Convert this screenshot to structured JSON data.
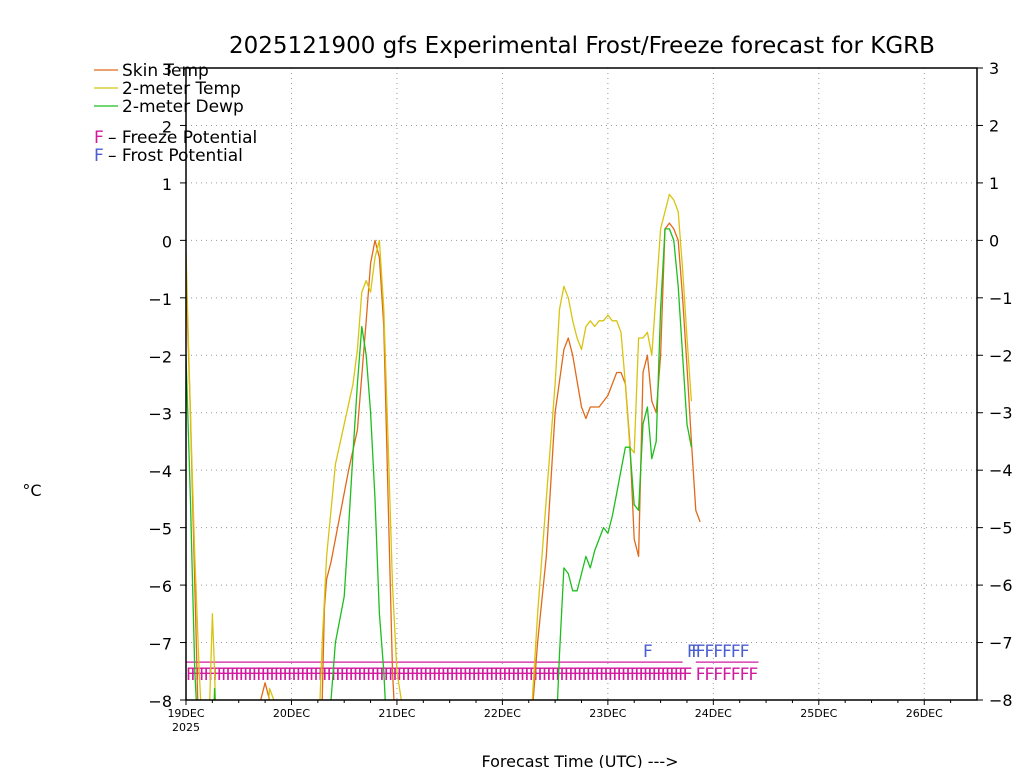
{
  "chart_data": {
    "type": "line",
    "title": "2025121900 gfs Experimental Frost/Freeze forecast for KGRB",
    "xlabel": "Forecast Time (UTC) --->",
    "ylabel": "°C",
    "ylim": [
      -8,
      3
    ],
    "xlim_hours": [
      0,
      180
    ],
    "y_ticks": [
      3,
      2,
      1,
      0,
      -1,
      -2,
      -3,
      -4,
      -5,
      -6,
      -7,
      -8
    ],
    "y_tick_labels": [
      "3",
      "2",
      "1",
      "0",
      "−1",
      "−2",
      "−3",
      "−4",
      "−5",
      "−6",
      "−7",
      "−8"
    ],
    "x_ticks": [
      {
        "hour": 0,
        "label": "19DEC",
        "sublabel": "2025"
      },
      {
        "hour": 24,
        "label": "20DEC"
      },
      {
        "hour": 48,
        "label": "21DEC"
      },
      {
        "hour": 72,
        "label": "22DEC"
      },
      {
        "hour": 96,
        "label": "23DEC"
      },
      {
        "hour": 120,
        "label": "24DEC"
      },
      {
        "hour": 144,
        "label": "25DEC"
      },
      {
        "hour": 168,
        "label": "26DEC"
      }
    ],
    "grid": true,
    "legend": [
      {
        "name": "Skin Temp",
        "color": "#e06a1a"
      },
      {
        "name": "2-meter Temp",
        "color": "#d8c410"
      },
      {
        "name": "2-meter Dewp",
        "color": "#1cbf1c"
      }
    ],
    "flag_legend": [
      {
        "symbol": "F",
        "text": " – Freeze Potential",
        "color": "#d21aa0"
      },
      {
        "symbol": "F",
        "text": " – Frost Potential",
        "color": "#4a5fd0"
      }
    ],
    "series": [
      {
        "name": "Skin Temp",
        "color": "#e06a1a",
        "points": [
          [
            0,
            -0.6
          ],
          [
            1,
            -3
          ],
          [
            2,
            -6
          ],
          [
            3,
            -9
          ],
          [
            16,
            -9
          ],
          [
            17,
            -8
          ],
          [
            18,
            -7.7
          ],
          [
            19,
            -8
          ],
          [
            20,
            -9
          ],
          [
            30,
            -9
          ],
          [
            31,
            -8
          ],
          [
            31.5,
            -6.4
          ],
          [
            32,
            -5.9
          ],
          [
            33,
            -5.6
          ],
          [
            35,
            -4.8
          ],
          [
            37,
            -4
          ],
          [
            39,
            -3.3
          ],
          [
            41,
            -1.4
          ],
          [
            42,
            -0.4
          ],
          [
            43,
            0
          ],
          [
            44,
            -0.3
          ],
          [
            45,
            -1.5
          ],
          [
            46,
            -4.5
          ],
          [
            47,
            -7.5
          ],
          [
            48,
            -9
          ],
          [
            78,
            -9
          ],
          [
            79,
            -8
          ],
          [
            80,
            -7
          ],
          [
            82,
            -5.5
          ],
          [
            84,
            -3
          ],
          [
            86,
            -1.9
          ],
          [
            87,
            -1.7
          ],
          [
            88,
            -2
          ],
          [
            90,
            -2.9
          ],
          [
            91,
            -3.1
          ],
          [
            92,
            -2.9
          ],
          [
            94,
            -2.9
          ],
          [
            96,
            -2.7
          ],
          [
            98,
            -2.3
          ],
          [
            99,
            -2.3
          ],
          [
            100,
            -2.5
          ],
          [
            101,
            -3.5
          ],
          [
            102,
            -5.2
          ],
          [
            103,
            -5.5
          ],
          [
            104,
            -2.3
          ],
          [
            105,
            -2
          ],
          [
            106,
            -2.8
          ],
          [
            107,
            -3
          ],
          [
            108,
            -2
          ],
          [
            109,
            0.2
          ],
          [
            110,
            0.3
          ],
          [
            111,
            0.2
          ],
          [
            112,
            0
          ],
          [
            113,
            -1
          ],
          [
            114,
            -2.2
          ],
          [
            115,
            -3.5
          ],
          [
            116,
            -4.7
          ],
          [
            117,
            -4.9
          ]
        ]
      },
      {
        "name": "2-meter Temp",
        "color": "#d8c410",
        "points": [
          [
            0,
            -0.2
          ],
          [
            1,
            -3
          ],
          [
            2,
            -5.5
          ],
          [
            3,
            -7.5
          ],
          [
            4,
            -9
          ],
          [
            5,
            -9
          ],
          [
            6,
            -6.5
          ],
          [
            6.5,
            -7.5
          ],
          [
            7,
            -9
          ],
          [
            18,
            -9
          ],
          [
            19,
            -7.8
          ],
          [
            20,
            -8
          ],
          [
            21,
            -9
          ],
          [
            30,
            -9
          ],
          [
            31,
            -7
          ],
          [
            32,
            -5.5
          ],
          [
            34,
            -3.9
          ],
          [
            36,
            -3.2
          ],
          [
            38,
            -2.5
          ],
          [
            39,
            -1.9
          ],
          [
            40,
            -0.9
          ],
          [
            41,
            -0.7
          ],
          [
            42,
            -0.9
          ],
          [
            43,
            -0.3
          ],
          [
            44,
            0
          ],
          [
            45,
            -1.2
          ],
          [
            46,
            -3.5
          ],
          [
            47,
            -6
          ],
          [
            48,
            -7.5
          ],
          [
            49,
            -8
          ],
          [
            50,
            -9
          ],
          [
            78,
            -9
          ],
          [
            80,
            -6.5
          ],
          [
            82,
            -4.5
          ],
          [
            84,
            -2.5
          ],
          [
            85,
            -1.2
          ],
          [
            86,
            -0.8
          ],
          [
            87,
            -1
          ],
          [
            88,
            -1.4
          ],
          [
            89,
            -1.7
          ],
          [
            90,
            -1.9
          ],
          [
            91,
            -1.5
          ],
          [
            92,
            -1.4
          ],
          [
            93,
            -1.5
          ],
          [
            94,
            -1.4
          ],
          [
            95,
            -1.4
          ],
          [
            96,
            -1.3
          ],
          [
            97,
            -1.4
          ],
          [
            98,
            -1.4
          ],
          [
            99,
            -1.6
          ],
          [
            100,
            -2.5
          ],
          [
            101,
            -3.6
          ],
          [
            102,
            -3.7
          ],
          [
            103,
            -1.7
          ],
          [
            104,
            -1.7
          ],
          [
            105,
            -1.6
          ],
          [
            106,
            -2
          ],
          [
            107,
            -0.9
          ],
          [
            108,
            0.2
          ],
          [
            109,
            0.5
          ],
          [
            110,
            0.8
          ],
          [
            111,
            0.7
          ],
          [
            112,
            0.5
          ],
          [
            113,
            -0.5
          ],
          [
            114,
            -1.7
          ],
          [
            115,
            -2.8
          ]
        ]
      },
      {
        "name": "2-meter Dewp",
        "color": "#1cbf1c",
        "points": [
          [
            0,
            -2
          ],
          [
            1,
            -4.5
          ],
          [
            2,
            -7.5
          ],
          [
            3,
            -9
          ],
          [
            6,
            -9
          ],
          [
            6.5,
            -7.8
          ],
          [
            7,
            -9
          ],
          [
            32,
            -9
          ],
          [
            33,
            -8
          ],
          [
            34,
            -7
          ],
          [
            36,
            -6.2
          ],
          [
            37,
            -5
          ],
          [
            38,
            -3.7
          ],
          [
            39,
            -2.5
          ],
          [
            40,
            -1.5
          ],
          [
            41,
            -2
          ],
          [
            42,
            -3
          ],
          [
            43,
            -4.5
          ],
          [
            44,
            -6.5
          ],
          [
            45,
            -7.5
          ],
          [
            46,
            -9
          ],
          [
            84,
            -9
          ],
          [
            85,
            -7.2
          ],
          [
            86,
            -5.7
          ],
          [
            87,
            -5.8
          ],
          [
            88,
            -6.1
          ],
          [
            89,
            -6.1
          ],
          [
            90,
            -5.8
          ],
          [
            91,
            -5.5
          ],
          [
            92,
            -5.7
          ],
          [
            93,
            -5.4
          ],
          [
            94,
            -5.2
          ],
          [
            95,
            -5
          ],
          [
            96,
            -5.1
          ],
          [
            97,
            -4.8
          ],
          [
            98,
            -4.4
          ],
          [
            99,
            -4
          ],
          [
            100,
            -3.6
          ],
          [
            101,
            -3.6
          ],
          [
            102,
            -4.6
          ],
          [
            103,
            -4.7
          ],
          [
            104,
            -3.2
          ],
          [
            105,
            -2.9
          ],
          [
            106,
            -3.8
          ],
          [
            107,
            -3.5
          ],
          [
            108,
            -1.2
          ],
          [
            109,
            0.2
          ],
          [
            110,
            0.2
          ],
          [
            111,
            0
          ],
          [
            112,
            -0.8
          ],
          [
            113,
            -2
          ],
          [
            114,
            -3.2
          ],
          [
            115,
            -3.6
          ]
        ]
      }
    ],
    "frost_flags": {
      "color": "#4a5fd0",
      "y": -7.15,
      "hours": [
        104,
        114,
        115,
        116,
        118,
        120,
        122,
        124,
        126
      ]
    },
    "freeze_flags": {
      "color": "#d21aa0",
      "y": -7.55,
      "range_hours": [
        0,
        113
      ],
      "step": 1,
      "extra_hours": [
        116,
        118,
        120,
        122,
        124,
        126,
        128
      ]
    }
  }
}
